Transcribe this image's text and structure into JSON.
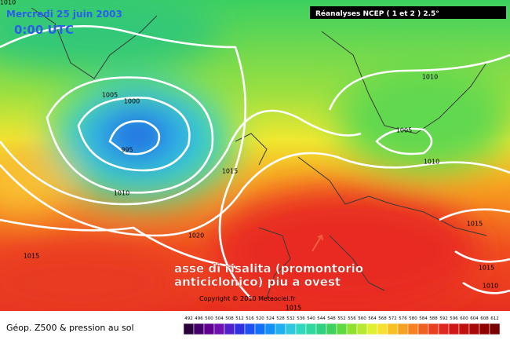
{
  "header": {
    "date": "Mercredi 25 juin 2003",
    "time": "0:00 UTC",
    "source": "Réanalyses NCEP ( 1 et 2 ) 2.5°"
  },
  "isobar_labels": [
    "1010",
    "1005",
    "1000",
    "995",
    "1010",
    "1015",
    "1020",
    "1015",
    "1010",
    "1005",
    "1010",
    "1015",
    "1015",
    "1010",
    "1015"
  ],
  "annotation": [
    "asse di risalita (promontorio",
    "anticiclonico) piu a ovest"
  ],
  "copyright": "Copyright © 2010 Meteociel.fr",
  "legend": {
    "title": "Géop. Z500 & pression au sol",
    "scale": [
      492,
      496,
      500,
      504,
      508,
      512,
      516,
      520,
      524,
      528,
      532,
      536,
      540,
      544,
      548,
      552,
      556,
      560,
      564,
      568,
      572,
      576,
      580,
      584,
      588,
      592,
      596,
      600,
      604,
      608,
      612
    ]
  }
}
